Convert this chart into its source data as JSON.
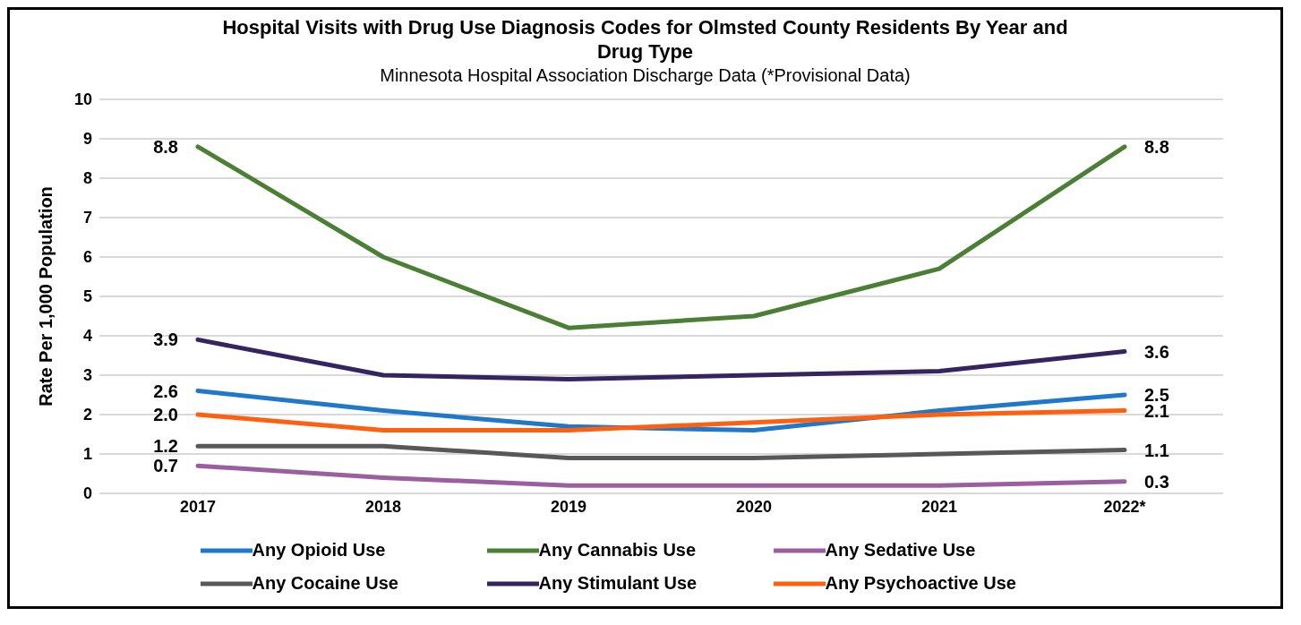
{
  "chart_data": {
    "type": "line",
    "title": "Hospital Visits with Drug Use Diagnosis Codes for Olmsted County Residents By Year and Drug Type",
    "subtitle": "Minnesota Hospital Association Discharge Data (*Provisional Data)",
    "ylabel": "Rate Per 1,000 Population",
    "categories": [
      "2017",
      "2018",
      "2019",
      "2020",
      "2021",
      "2022*"
    ],
    "series": [
      {
        "name": "Any Opioid Use",
        "color": "#1f78c8",
        "values": [
          2.6,
          2.1,
          1.7,
          1.6,
          2.1,
          2.5
        ],
        "value_labels": [
          "2.6",
          null,
          null,
          null,
          null,
          "2.5"
        ]
      },
      {
        "name": "Any Cannabis Use",
        "color": "#4a7f35",
        "values": [
          8.8,
          6.0,
          4.2,
          4.5,
          5.7,
          8.8
        ],
        "value_labels": [
          "8.8",
          null,
          null,
          null,
          null,
          "8.8"
        ]
      },
      {
        "name": "Any Sedative Use",
        "color": "#9b5fa0",
        "values": [
          0.7,
          0.4,
          0.2,
          0.2,
          0.2,
          0.3
        ],
        "value_labels": [
          "0.7",
          null,
          null,
          null,
          null,
          "0.3"
        ]
      },
      {
        "name": "Any Cocaine Use",
        "color": "#58585a",
        "values": [
          1.2,
          1.2,
          0.9,
          0.9,
          1.0,
          1.1
        ],
        "value_labels": [
          "1.2",
          null,
          null,
          null,
          null,
          "1.1"
        ]
      },
      {
        "name": "Any Stimulant Use",
        "color": "#35245f",
        "values": [
          3.9,
          3.0,
          2.9,
          3.0,
          3.1,
          3.6
        ],
        "value_labels": [
          "3.9",
          null,
          null,
          null,
          null,
          "3.6"
        ]
      },
      {
        "name": "Any Psychoactive Use",
        "color": "#ff6010",
        "values": [
          2.0,
          1.6,
          1.6,
          1.8,
          2.0,
          2.1
        ],
        "value_labels": [
          "2.0",
          null,
          null,
          null,
          null,
          "2.1"
        ]
      }
    ],
    "ylim": [
      0,
      10
    ],
    "yticks": [
      0,
      1,
      2,
      3,
      4,
      5,
      6,
      7,
      8,
      9,
      10
    ],
    "grid": "y",
    "legend": "bottom",
    "marker": "none",
    "line_style": "solid"
  }
}
